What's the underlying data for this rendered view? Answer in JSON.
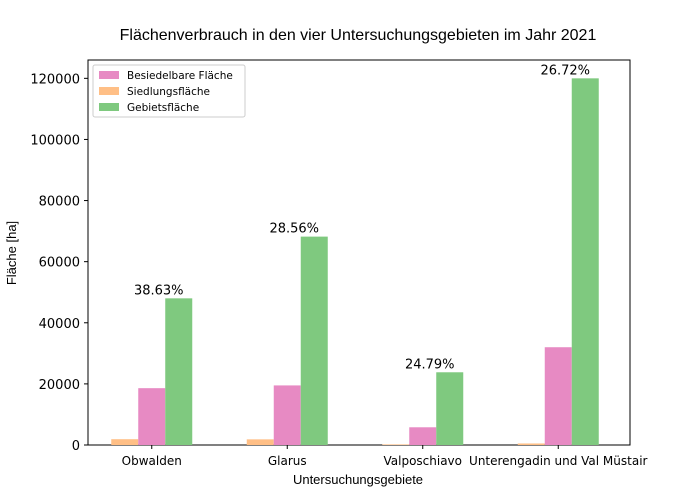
{
  "chart_data": {
    "type": "bar",
    "title": "Flächenverbrauch in den vier Untersuchungsgebieten im Jahr 2021",
    "xlabel": "Untersuchungsgebiete",
    "ylabel": "Fläche [ha]",
    "ylim": [
      0,
      126000
    ],
    "yticks": [
      0,
      20000,
      40000,
      60000,
      80000,
      100000,
      120000
    ],
    "categories": [
      "Obwalden",
      "Glarus",
      "Valposchiavo",
      "Unterengadin und Val Müstair"
    ],
    "series": [
      {
        "name": "Siedlungsfläche",
        "color": "#ffbf86",
        "values": [
          1900,
          1850,
          200,
          500
        ]
      },
      {
        "name": "Besiedelbare Fläche",
        "color": "#e78ac3",
        "values": [
          18600,
          19500,
          5800,
          32000
        ]
      },
      {
        "name": "Gebietsfläche",
        "color": "#7fc97f",
        "values": [
          48000,
          68200,
          23800,
          120000
        ]
      }
    ],
    "legend_order": [
      "Besiedelbare Fläche",
      "Siedlungsfläche",
      "Gebietsfläche"
    ],
    "legend_position": "top-left",
    "annotations": [
      "38.63%",
      "28.56%",
      "24.79%",
      "26.72%"
    ],
    "grid": false
  }
}
